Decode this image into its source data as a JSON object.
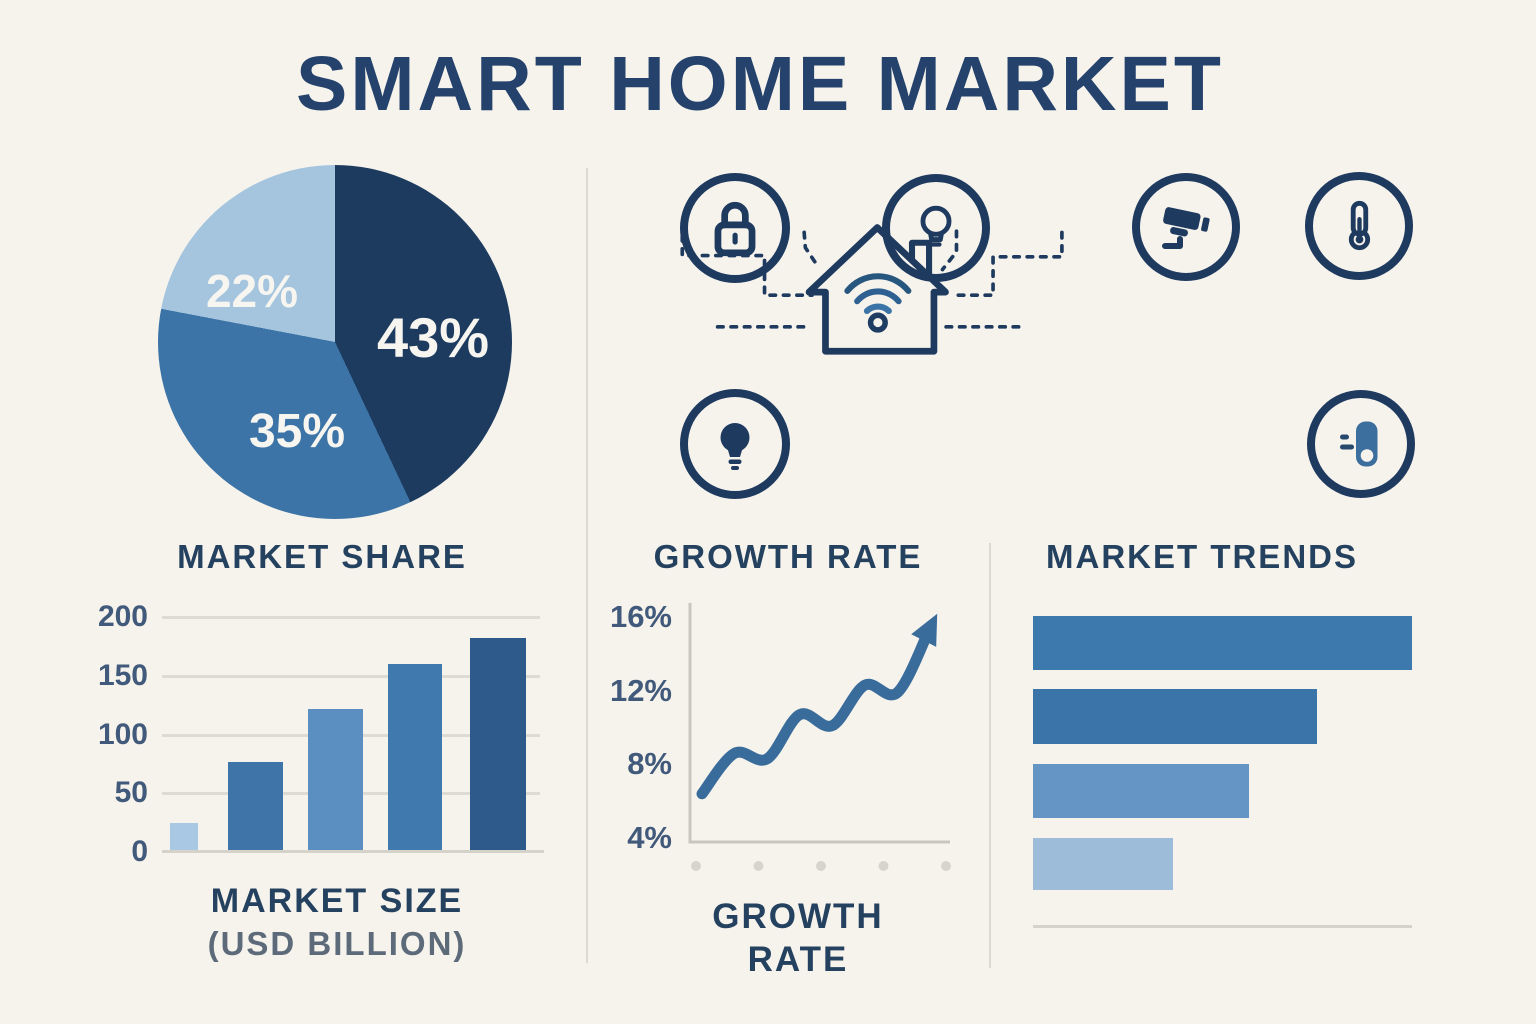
{
  "title": "SMART HOME MARKET",
  "colors": {
    "background": "#f6f3ec",
    "navy": "#1e3a5f",
    "heading": "#24415f",
    "axis_label": "#41597a",
    "gridline": "#dedbd4",
    "divider": "#dcd9d2",
    "dashed_connector": "#1e3a5f",
    "pie_label": "#f7f5f0"
  },
  "sections": {
    "market_share": {
      "heading": "MARKET SHARE"
    },
    "growth_rate": {
      "heading": "GROWTH RATE",
      "footer_line1": "GROWTH",
      "footer_line2": "RATE"
    },
    "market_trends": {
      "heading": "MARKET TRENDS"
    },
    "market_size": {
      "footer_line1": "MARKET SIZE",
      "footer_line2": "(USD BILLION)"
    }
  },
  "icons": [
    "lock-icon",
    "bulb-outline-icon",
    "cctv-camera-icon",
    "thermometer-icon",
    "bulb-filled-icon",
    "smart-plug-icon",
    "house-icon",
    "wifi-icon"
  ],
  "chart_data": [
    {
      "type": "pie",
      "title": "MARKET SHARE",
      "labels": [
        "43%",
        "35%",
        "22%"
      ],
      "values": [
        43,
        35,
        22
      ],
      "colors": [
        "#1d3a5f",
        "#3d74a7",
        "#a5c4de"
      ],
      "start_angle_deg": 0,
      "direction": "clockwise"
    },
    {
      "type": "bar",
      "title": "MARKET SIZE (USD BILLION)",
      "values": [
        25,
        77,
        122,
        160,
        182
      ],
      "bar_colors": [
        "#a9c8e3",
        "#3e74a7",
        "#5b8ec1",
        "#4079ad",
        "#2d5a8a"
      ],
      "y_ticks": [
        0,
        50,
        100,
        150,
        200
      ],
      "ylim": [
        0,
        200
      ],
      "grid": true
    },
    {
      "type": "line",
      "title": "GROWTH RATE",
      "y_tick_labels": [
        "4%",
        "8%",
        "12%",
        "16%"
      ],
      "y_tick_values": [
        4,
        8,
        12,
        16
      ],
      "ylim": [
        4,
        16
      ],
      "curve_points_pct": [
        6.4,
        8.6,
        8.3,
        10.7,
        10.1,
        12.3,
        11.9,
        15.4
      ],
      "x_dots": 5,
      "arrow": true,
      "line_color": "#3a6c9b",
      "axis_color": "#c9c6c0",
      "dot_color": "#d7d4cd"
    },
    {
      "type": "bar",
      "orientation": "horizontal",
      "title": "MARKET TRENDS",
      "values": [
        100,
        75,
        57,
        37
      ],
      "bar_colors": [
        "#3e79ad",
        "#3a74a8",
        "#6595c4",
        "#9cbcda"
      ]
    }
  ]
}
